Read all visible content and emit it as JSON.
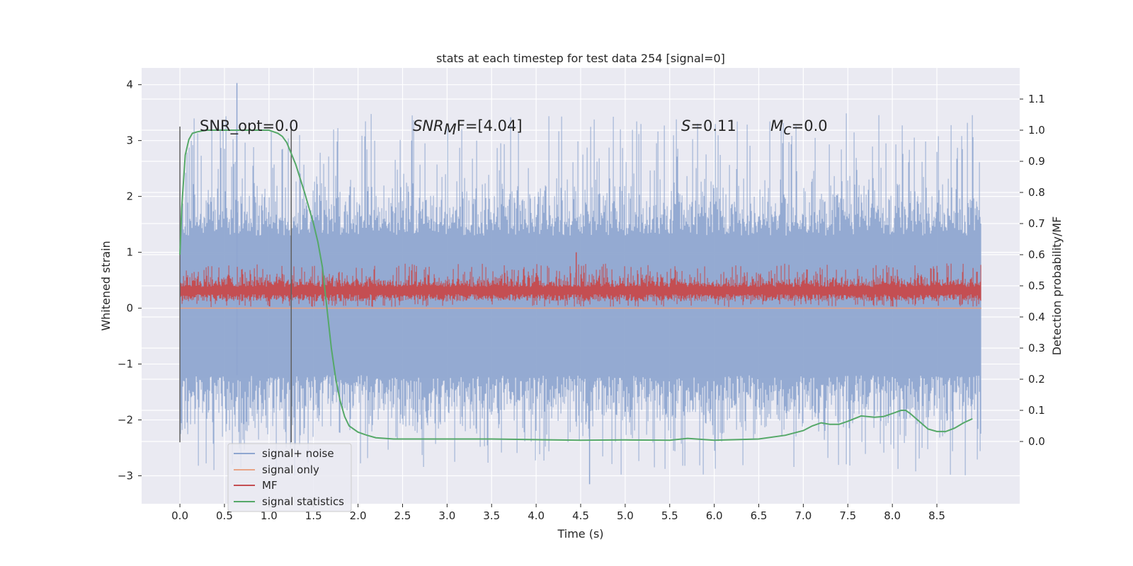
{
  "chart_data": {
    "type": "line",
    "title": "stats at each timestep for test data 254 [signal=0]",
    "xlabel": "Time (s)",
    "ylabel": "Whitened strain",
    "y2label": "Detection probability/MF",
    "xlim": [
      -0.43,
      9.43
    ],
    "ylim": [
      -3.5,
      4.3
    ],
    "y2lim": [
      -0.2,
      1.2
    ],
    "xticks": [
      "0.0",
      "0.5",
      "1.0",
      "1.5",
      "2.0",
      "2.5",
      "3.0",
      "3.5",
      "4.0",
      "4.5",
      "5.0",
      "5.5",
      "6.0",
      "6.5",
      "7.0",
      "7.5",
      "8.0",
      "8.5"
    ],
    "yticks": [
      "4",
      "3",
      "2",
      "1",
      "0",
      "−1",
      "−2",
      "−3"
    ],
    "y2ticks": [
      "1.1",
      "1.0",
      "0.9",
      "0.8",
      "0.7",
      "0.6",
      "0.5",
      "0.4",
      "0.3",
      "0.2",
      "0.1",
      "0.0"
    ],
    "vlines": [
      0.0,
      1.25
    ],
    "colors": {
      "noise": "#8fa6d0",
      "signal": "#e8a487",
      "mf": "#c44e52",
      "stats": "#55a868",
      "background": "#eaeaf2",
      "grid": "#ffffff",
      "vline": "#606060"
    },
    "series": [
      {
        "name": "signal+ noise",
        "axis": "left",
        "description": "dense noise band",
        "envelope": {
          "x": [
            0.0,
            9.0
          ],
          "typical_range": [
            -1.4,
            1.8
          ],
          "max": 4.03,
          "min": -3.15
        }
      },
      {
        "name": "signal only",
        "axis": "left",
        "x": [
          0.0,
          9.0
        ],
        "values": [
          0.0,
          0.0
        ]
      },
      {
        "name": "MF",
        "axis": "left",
        "description": "dense matched-filter band",
        "envelope": {
          "x": [
            0.0,
            9.0
          ],
          "typical_range": [
            0.05,
            0.6
          ],
          "max": 1.0,
          "min": 0.0
        }
      },
      {
        "name": "signal statistics",
        "axis": "right",
        "x": [
          0.0,
          0.02,
          0.06,
          0.1,
          0.14,
          0.2,
          0.3,
          0.5,
          0.8,
          1.0,
          1.05,
          1.1,
          1.15,
          1.2,
          1.3,
          1.4,
          1.5,
          1.55,
          1.6,
          1.65,
          1.7,
          1.75,
          1.8,
          1.85,
          1.9,
          2.0,
          2.1,
          2.2,
          2.4,
          2.6,
          3.0,
          3.5,
          4.0,
          4.5,
          5.0,
          5.5,
          5.7,
          6.0,
          6.5,
          6.8,
          7.0,
          7.1,
          7.2,
          7.3,
          7.4,
          7.5,
          7.65,
          7.8,
          7.9,
          8.0,
          8.1,
          8.15,
          8.2,
          8.3,
          8.4,
          8.5,
          8.6,
          8.7,
          8.8,
          8.9
        ],
        "values": [
          0.6,
          0.75,
          0.92,
          0.97,
          0.99,
          0.995,
          1.0,
          1.0,
          1.0,
          1.0,
          0.995,
          0.99,
          0.98,
          0.96,
          0.89,
          0.8,
          0.7,
          0.64,
          0.56,
          0.43,
          0.3,
          0.2,
          0.13,
          0.08,
          0.05,
          0.03,
          0.02,
          0.012,
          0.008,
          0.008,
          0.008,
          0.008,
          0.006,
          0.004,
          0.005,
          0.004,
          0.01,
          0.004,
          0.008,
          0.02,
          0.035,
          0.05,
          0.06,
          0.055,
          0.055,
          0.065,
          0.082,
          0.078,
          0.08,
          0.09,
          0.1,
          0.1,
          0.09,
          0.065,
          0.04,
          0.032,
          0.032,
          0.043,
          0.06,
          0.073
        ]
      }
    ],
    "annotations": {
      "snr_opt": "SNR_opt=0.0",
      "snr_mf_base": "SNR",
      "snr_mf_sub": "M",
      "snr_mf_rest": "F=[4.04]",
      "s_sym": "S",
      "s_val": "=0.11",
      "mc_base": "M",
      "mc_sub": "c",
      "mc_val": "=0.0"
    },
    "legend": {
      "position": "lower-left",
      "entries": [
        {
          "label": "signal+ noise",
          "color": "#8fa6d0"
        },
        {
          "label": "signal only",
          "color": "#e8a487"
        },
        {
          "label": "MF",
          "color": "#c44e52"
        },
        {
          "label": "signal statistics",
          "color": "#55a868"
        }
      ]
    }
  }
}
